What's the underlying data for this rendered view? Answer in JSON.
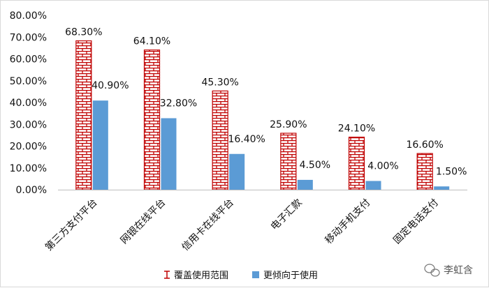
{
  "chart_data": {
    "type": "bar",
    "categories": [
      "第三方支付平台",
      "网银在线平台",
      "信用卡在线平台",
      "电子汇款",
      "移动手机支付",
      "固定电话支付"
    ],
    "series": [
      {
        "name": "覆盖使用范围",
        "values": [
          68.3,
          64.1,
          45.3,
          25.9,
          24.1,
          16.6
        ],
        "labels": [
          "68.30%",
          "64.10%",
          "45.30%",
          "25.90%",
          "24.10%",
          "16.60%"
        ],
        "pattern": "brick",
        "color": "#c00000"
      },
      {
        "name": "更倾向于使用",
        "values": [
          40.9,
          32.8,
          16.4,
          4.5,
          4.0,
          1.5
        ],
        "labels": [
          "40.90%",
          "32.80%",
          "16.40%",
          "4.50%",
          "4.00%",
          "1.50%"
        ],
        "pattern": "solid",
        "color": "#5b9bd5"
      }
    ],
    "y_ticks": [
      "0.00%",
      "10.00%",
      "20.00%",
      "30.00%",
      "40.00%",
      "50.00%",
      "60.00%",
      "70.00%",
      "80.00%"
    ],
    "ylim": [
      0,
      80
    ],
    "grid": false,
    "legend_position": "bottom"
  },
  "watermark": {
    "text": "李虹含",
    "icon": "wechat-icon"
  }
}
